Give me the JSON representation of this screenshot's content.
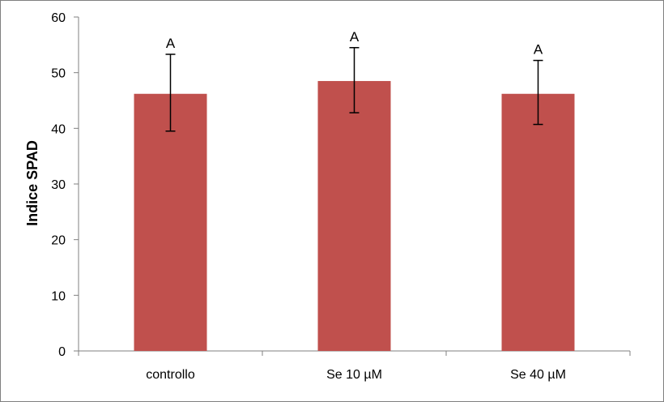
{
  "chart_data": {
    "type": "bar",
    "categories": [
      "controllo",
      "Se 10 µM",
      "Se 40 µM"
    ],
    "values": [
      46.2,
      48.5,
      46.2
    ],
    "error_high": [
      53.3,
      54.5,
      52.2
    ],
    "error_low": [
      39.5,
      42.8,
      40.7
    ],
    "annotations": [
      "A",
      "A",
      "A"
    ],
    "ylabel": "Indice SPAD",
    "xlabel": "",
    "ylim": [
      0,
      60
    ],
    "yticks": [
      0,
      10,
      20,
      30,
      40,
      50,
      60
    ],
    "ytick_labels": [
      "0",
      "10",
      "20",
      "30",
      "40",
      "50",
      "60"
    ],
    "bar_color": "#c0504d",
    "grid": false,
    "legend": "none"
  }
}
